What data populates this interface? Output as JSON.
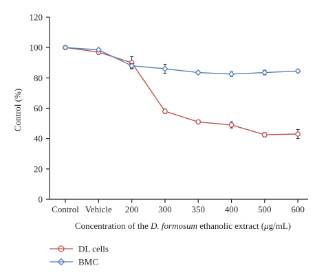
{
  "colors": {
    "dl_cells": "#c0504d",
    "bmc": "#4f81bd",
    "axis": "#231f20",
    "error_bar": "#231f20"
  },
  "chart_data": {
    "type": "line",
    "categories": [
      "Control",
      "Vehicle",
      "200",
      "300",
      "350",
      "400",
      "500",
      "600"
    ],
    "xlabel": {
      "prefix": "Concentration of the ",
      "italic": "D. formosum",
      "middle": " ethanolic extract (",
      "unit_mu": "μ",
      "suffix": "g/mL)"
    },
    "ylabel": "Control (%)",
    "ylim": [
      0,
      120
    ],
    "yticks": [
      "0",
      "20",
      "40",
      "60",
      "80",
      "100",
      "120"
    ],
    "grid": false,
    "legend_position": "bottom-left",
    "series": [
      {
        "name": "DL cells",
        "color_key": "dl_cells",
        "marker": "circle",
        "values": [
          100,
          97,
          90,
          58,
          51,
          49,
          42.5,
          43
        ],
        "errors": [
          0,
          1.5,
          4,
          1.5,
          0.5,
          2,
          1.5,
          3
        ]
      },
      {
        "name": "BMC",
        "color_key": "bmc",
        "marker": "diamond",
        "values": [
          100,
          98.5,
          88,
          86,
          83.5,
          82.5,
          83.5,
          84.5
        ],
        "errors": [
          0,
          1,
          1.5,
          3,
          1,
          1.5,
          1.5,
          1
        ]
      }
    ]
  }
}
